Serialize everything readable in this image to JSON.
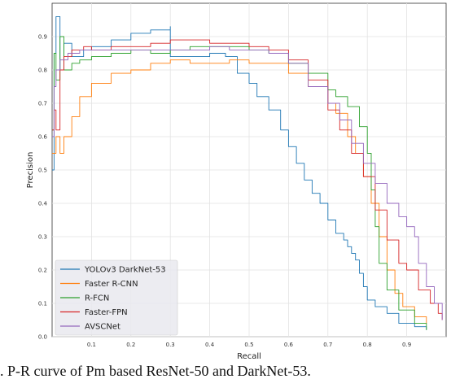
{
  "chart_data": {
    "type": "line",
    "xlabel": "Recall",
    "ylabel": "Precision",
    "xlim": [
      0,
      1
    ],
    "ylim": [
      0,
      1
    ],
    "x_ticks": [
      "0.1",
      "0.2",
      "0.3",
      "0.4",
      "0.5",
      "0.6",
      "0.7",
      "0.8",
      "0.9"
    ],
    "y_ticks": [
      "0.0",
      "0.1",
      "0.2",
      "0.3",
      "0.4",
      "0.5",
      "0.6",
      "0.7",
      "0.8",
      "0.9"
    ],
    "grid": true,
    "legend_position": "lower-left",
    "series": [
      {
        "name": "YOLOv3 DarkNet-53",
        "color": "#1f77b4",
        "points": [
          [
            0.0,
            0.5
          ],
          [
            0.005,
            0.85
          ],
          [
            0.01,
            0.96
          ],
          [
            0.02,
            0.8
          ],
          [
            0.03,
            0.88
          ],
          [
            0.05,
            0.84
          ],
          [
            0.08,
            0.86
          ],
          [
            0.1,
            0.87
          ],
          [
            0.15,
            0.89
          ],
          [
            0.2,
            0.91
          ],
          [
            0.25,
            0.92
          ],
          [
            0.3,
            0.93
          ],
          [
            0.3,
            0.84
          ],
          [
            0.35,
            0.84
          ],
          [
            0.4,
            0.85
          ],
          [
            0.44,
            0.84
          ],
          [
            0.47,
            0.79
          ],
          [
            0.5,
            0.76
          ],
          [
            0.52,
            0.72
          ],
          [
            0.55,
            0.68
          ],
          [
            0.58,
            0.62
          ],
          [
            0.6,
            0.57
          ],
          [
            0.62,
            0.52
          ],
          [
            0.64,
            0.47
          ],
          [
            0.66,
            0.43
          ],
          [
            0.68,
            0.4
          ],
          [
            0.7,
            0.35
          ],
          [
            0.72,
            0.31
          ],
          [
            0.74,
            0.29
          ],
          [
            0.75,
            0.27
          ],
          [
            0.76,
            0.25
          ],
          [
            0.77,
            0.23
          ],
          [
            0.78,
            0.19
          ],
          [
            0.79,
            0.15
          ],
          [
            0.8,
            0.11
          ],
          [
            0.82,
            0.09
          ],
          [
            0.85,
            0.07
          ],
          [
            0.88,
            0.04
          ],
          [
            0.92,
            0.03
          ],
          [
            0.95,
            0.02
          ]
        ]
      },
      {
        "name": "Faster R-CNN",
        "color": "#ff7f0e",
        "points": [
          [
            0.0,
            0.55
          ],
          [
            0.01,
            0.6
          ],
          [
            0.02,
            0.55
          ],
          [
            0.03,
            0.6
          ],
          [
            0.05,
            0.66
          ],
          [
            0.07,
            0.72
          ],
          [
            0.1,
            0.76
          ],
          [
            0.15,
            0.79
          ],
          [
            0.2,
            0.8
          ],
          [
            0.25,
            0.82
          ],
          [
            0.3,
            0.83
          ],
          [
            0.35,
            0.82
          ],
          [
            0.4,
            0.82
          ],
          [
            0.45,
            0.83
          ],
          [
            0.5,
            0.82
          ],
          [
            0.55,
            0.82
          ],
          [
            0.6,
            0.79
          ],
          [
            0.65,
            0.75
          ],
          [
            0.7,
            0.7
          ],
          [
            0.72,
            0.67
          ],
          [
            0.75,
            0.6
          ],
          [
            0.77,
            0.55
          ],
          [
            0.79,
            0.48
          ],
          [
            0.81,
            0.4
          ],
          [
            0.83,
            0.3
          ],
          [
            0.85,
            0.2
          ],
          [
            0.87,
            0.13
          ],
          [
            0.89,
            0.09
          ],
          [
            0.92,
            0.06
          ],
          [
            0.95,
            0.04
          ]
        ]
      },
      {
        "name": "R-FCN",
        "color": "#2ca02c",
        "points": [
          [
            0.0,
            0.62
          ],
          [
            0.005,
            0.85
          ],
          [
            0.01,
            0.77
          ],
          [
            0.02,
            0.9
          ],
          [
            0.03,
            0.8
          ],
          [
            0.05,
            0.82
          ],
          [
            0.07,
            0.83
          ],
          [
            0.1,
            0.84
          ],
          [
            0.15,
            0.85
          ],
          [
            0.2,
            0.86
          ],
          [
            0.25,
            0.85
          ],
          [
            0.3,
            0.86
          ],
          [
            0.35,
            0.87
          ],
          [
            0.4,
            0.87
          ],
          [
            0.45,
            0.87
          ],
          [
            0.5,
            0.86
          ],
          [
            0.55,
            0.85
          ],
          [
            0.6,
            0.82
          ],
          [
            0.65,
            0.79
          ],
          [
            0.7,
            0.74
          ],
          [
            0.72,
            0.72
          ],
          [
            0.75,
            0.69
          ],
          [
            0.78,
            0.63
          ],
          [
            0.8,
            0.55
          ],
          [
            0.81,
            0.44
          ],
          [
            0.82,
            0.33
          ],
          [
            0.83,
            0.22
          ],
          [
            0.85,
            0.14
          ],
          [
            0.88,
            0.08
          ],
          [
            0.92,
            0.04
          ],
          [
            0.95,
            0.02
          ]
        ]
      },
      {
        "name": "Faster-FPN",
        "color": "#d62728",
        "points": [
          [
            0.0,
            0.62
          ],
          [
            0.005,
            0.68
          ],
          [
            0.01,
            0.62
          ],
          [
            0.02,
            0.8
          ],
          [
            0.03,
            0.84
          ],
          [
            0.05,
            0.86
          ],
          [
            0.08,
            0.87
          ],
          [
            0.1,
            0.86
          ],
          [
            0.15,
            0.87
          ],
          [
            0.2,
            0.87
          ],
          [
            0.25,
            0.88
          ],
          [
            0.3,
            0.89
          ],
          [
            0.35,
            0.89
          ],
          [
            0.4,
            0.88
          ],
          [
            0.45,
            0.88
          ],
          [
            0.5,
            0.87
          ],
          [
            0.55,
            0.86
          ],
          [
            0.6,
            0.83
          ],
          [
            0.65,
            0.77
          ],
          [
            0.7,
            0.68
          ],
          [
            0.73,
            0.62
          ],
          [
            0.76,
            0.55
          ],
          [
            0.79,
            0.48
          ],
          [
            0.82,
            0.38
          ],
          [
            0.85,
            0.29
          ],
          [
            0.88,
            0.22
          ],
          [
            0.9,
            0.2
          ],
          [
            0.93,
            0.14
          ],
          [
            0.96,
            0.1
          ],
          [
            0.98,
            0.07
          ],
          [
            0.99,
            0.05
          ]
        ]
      },
      {
        "name": "AVSCNet",
        "color": "#9467bd",
        "points": [
          [
            0.0,
            0.6
          ],
          [
            0.005,
            0.75
          ],
          [
            0.01,
            0.8
          ],
          [
            0.02,
            0.83
          ],
          [
            0.04,
            0.85
          ],
          [
            0.07,
            0.86
          ],
          [
            0.1,
            0.86
          ],
          [
            0.15,
            0.86
          ],
          [
            0.2,
            0.86
          ],
          [
            0.25,
            0.86
          ],
          [
            0.3,
            0.86
          ],
          [
            0.35,
            0.86
          ],
          [
            0.4,
            0.87
          ],
          [
            0.45,
            0.86
          ],
          [
            0.5,
            0.86
          ],
          [
            0.55,
            0.85
          ],
          [
            0.6,
            0.82
          ],
          [
            0.65,
            0.75
          ],
          [
            0.7,
            0.7
          ],
          [
            0.73,
            0.65
          ],
          [
            0.76,
            0.58
          ],
          [
            0.79,
            0.52
          ],
          [
            0.82,
            0.46
          ],
          [
            0.85,
            0.4
          ],
          [
            0.88,
            0.36
          ],
          [
            0.9,
            0.33
          ],
          [
            0.92,
            0.3
          ],
          [
            0.93,
            0.22
          ],
          [
            0.95,
            0.15
          ],
          [
            0.97,
            0.1
          ],
          [
            0.99,
            0.05
          ]
        ]
      }
    ]
  },
  "caption": ". P-R curve of Pm based ResNet-50 and DarkNet-53."
}
